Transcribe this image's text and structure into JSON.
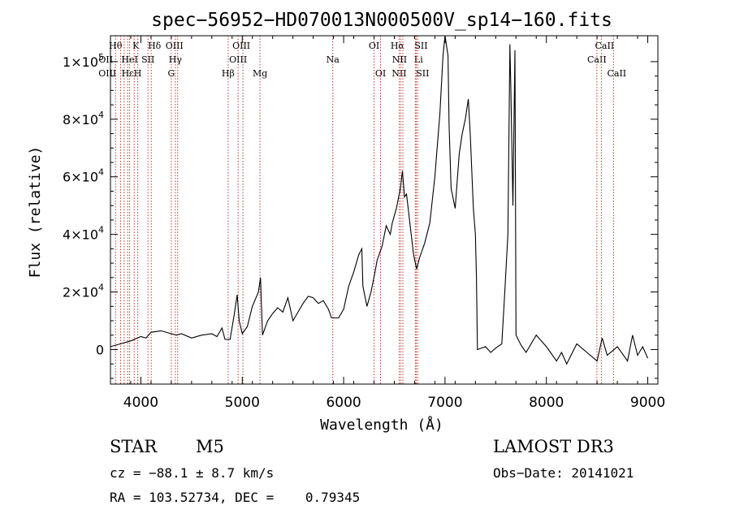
{
  "title": "spec−56952−HD070013N000500V_sp14−160.fits",
  "chart_data": {
    "type": "line",
    "xlabel": "Wavelength (Å)",
    "ylabel": "Flux (relative)",
    "xlim": [
      3700,
      9100
    ],
    "ylim": [
      -12000,
      109000
    ],
    "grid": false,
    "x_ticks": [
      4000,
      5000,
      6000,
      7000,
      8000,
      9000
    ],
    "x_tick_labels": [
      "4000",
      "5000",
      "6000",
      "7000",
      "8000",
      "9000"
    ],
    "y_ticks": [
      0,
      20000,
      40000,
      60000,
      80000,
      100000
    ],
    "y_tick_labels": [
      {
        "mantissa": "0",
        "exp": ""
      },
      {
        "mantissa": "2×10",
        "exp": "4"
      },
      {
        "mantissa": "4×10",
        "exp": "4"
      },
      {
        "mantissa": "6×10",
        "exp": "4"
      },
      {
        "mantissa": "8×10",
        "exp": "4"
      },
      {
        "mantissa": "1×10",
        "exp": "5"
      }
    ],
    "series": [
      {
        "color": "#000000",
        "points": [
          [
            3700,
            1000
          ],
          [
            3800,
            2000
          ],
          [
            3900,
            3000
          ],
          [
            4000,
            4500
          ],
          [
            4050,
            4000
          ],
          [
            4100,
            6000
          ],
          [
            4200,
            6500
          ],
          [
            4300,
            5500
          ],
          [
            4350,
            5000
          ],
          [
            4400,
            5500
          ],
          [
            4500,
            4000
          ],
          [
            4600,
            5000
          ],
          [
            4700,
            5500
          ],
          [
            4750,
            4500
          ],
          [
            4800,
            7500
          ],
          [
            4830,
            3500
          ],
          [
            4880,
            3500
          ],
          [
            4920,
            12000
          ],
          [
            4950,
            19000
          ],
          [
            4970,
            10000
          ],
          [
            5000,
            5500
          ],
          [
            5050,
            8000
          ],
          [
            5100,
            15000
          ],
          [
            5160,
            20000
          ],
          [
            5180,
            25000
          ],
          [
            5200,
            5000
          ],
          [
            5250,
            10000
          ],
          [
            5300,
            12500
          ],
          [
            5350,
            14500
          ],
          [
            5400,
            13000
          ],
          [
            5450,
            18000
          ],
          [
            5500,
            10000
          ],
          [
            5550,
            13000
          ],
          [
            5600,
            16000
          ],
          [
            5650,
            18500
          ],
          [
            5700,
            18000
          ],
          [
            5750,
            16000
          ],
          [
            5800,
            17000
          ],
          [
            5850,
            14000
          ],
          [
            5880,
            11000
          ],
          [
            5950,
            11000
          ],
          [
            6000,
            14000
          ],
          [
            6050,
            22000
          ],
          [
            6100,
            27000
          ],
          [
            6150,
            33000
          ],
          [
            6180,
            35000
          ],
          [
            6190,
            22000
          ],
          [
            6230,
            15000
          ],
          [
            6270,
            20000
          ],
          [
            6310,
            27000
          ],
          [
            6330,
            31000
          ],
          [
            6380,
            36000
          ],
          [
            6420,
            43000
          ],
          [
            6460,
            40000
          ],
          [
            6480,
            44000
          ],
          [
            6520,
            49000
          ],
          [
            6560,
            56000
          ],
          [
            6580,
            62000
          ],
          [
            6600,
            53000
          ],
          [
            6620,
            54000
          ],
          [
            6650,
            45000
          ],
          [
            6690,
            33000
          ],
          [
            6720,
            28000
          ],
          [
            6750,
            32000
          ],
          [
            6800,
            37000
          ],
          [
            6850,
            44000
          ],
          [
            6900,
            60000
          ],
          [
            6950,
            82000
          ],
          [
            6980,
            102000
          ],
          [
            7000,
            109000
          ],
          [
            7030,
            102000
          ],
          [
            7040,
            78000
          ],
          [
            7060,
            56000
          ],
          [
            7100,
            49000
          ],
          [
            7140,
            68000
          ],
          [
            7170,
            75000
          ],
          [
            7200,
            80000
          ],
          [
            7230,
            87000
          ],
          [
            7250,
            74000
          ],
          [
            7280,
            49000
          ],
          [
            7300,
            40000
          ],
          [
            7310,
            25000
          ],
          [
            7320,
            0
          ],
          [
            7400,
            1000
          ],
          [
            7450,
            -1000
          ],
          [
            7500,
            500
          ],
          [
            7560,
            2000
          ],
          [
            7590,
            20000
          ],
          [
            7620,
            40000
          ],
          [
            7640,
            106000
          ],
          [
            7650,
            90000
          ],
          [
            7670,
            50000
          ],
          [
            7690,
            104000
          ],
          [
            7700,
            5000
          ],
          [
            7750,
            1500
          ],
          [
            7800,
            -1000
          ],
          [
            7900,
            5000
          ],
          [
            8000,
            1000
          ],
          [
            8100,
            -4000
          ],
          [
            8150,
            -1000
          ],
          [
            8200,
            -5000
          ],
          [
            8300,
            2000
          ],
          [
            8400,
            -1000
          ],
          [
            8500,
            -4000
          ],
          [
            8550,
            4000
          ],
          [
            8600,
            -2000
          ],
          [
            8700,
            1000
          ],
          [
            8800,
            -4000
          ],
          [
            8850,
            5000
          ],
          [
            8900,
            -2000
          ],
          [
            8950,
            1000
          ],
          [
            9000,
            -3000
          ]
        ]
      }
    ],
    "lines": {
      "color": "#c0392b",
      "items": [
        {
          "x": 3750,
          "labels": [
            {
              "text": "Hθ",
              "row": 0,
              "dx": 0
            },
            {
              "text": "OII",
              "row": 1,
              "dx": -12
            },
            {
              "text": "OIII",
              "row": 2,
              "dx": -10
            }
          ]
        },
        {
          "x": 3800,
          "labels": []
        },
        {
          "x": 3835,
          "labels": []
        },
        {
          "x": 3870,
          "labels": [
            {
              "text": "Hε",
              "row": 2,
              "dx": 0
            }
          ]
        },
        {
          "x": 3889,
          "labels": [
            {
              "text": "HeI",
              "row": 1,
              "dx": 0
            }
          ]
        },
        {
          "x": 3934,
          "labels": [
            {
              "text": "K",
              "row": 0,
              "dx": 2
            }
          ]
        },
        {
          "x": 3969,
          "labels": [
            {
              "text": "H",
              "row": 2,
              "dx": 0
            }
          ]
        },
        {
          "x": 4070,
          "labels": [
            {
              "text": "SII",
              "row": 1,
              "dx": 0
            }
          ]
        },
        {
          "x": 4102,
          "labels": [
            {
              "text": "Hδ",
              "row": 0,
              "dx": 4
            }
          ]
        },
        {
          "x": 4300,
          "labels": [
            {
              "text": "G",
              "row": 2,
              "dx": 0
            }
          ]
        },
        {
          "x": 4340,
          "labels": [
            {
              "text": "Hγ",
              "row": 1,
              "dx": 0
            }
          ]
        },
        {
          "x": 4363,
          "labels": [
            {
              "text": "OIII",
              "row": 0,
              "dx": -4
            }
          ]
        },
        {
          "x": 4861,
          "labels": [
            {
              "text": "Hβ",
              "row": 2,
              "dx": 0
            }
          ]
        },
        {
          "x": 4959,
          "labels": [
            {
              "text": "OIII",
              "row": 1,
              "dx": 0
            }
          ]
        },
        {
          "x": 5007,
          "labels": [
            {
              "text": "OIII",
              "row": 0,
              "dx": -2
            }
          ]
        },
        {
          "x": 5175,
          "labels": [
            {
              "text": "Mg",
              "row": 2,
              "dx": 0
            }
          ]
        },
        {
          "x": 5893,
          "labels": [
            {
              "text": "Na",
              "row": 1,
              "dx": 0
            }
          ]
        },
        {
          "x": 6300,
          "labels": [
            {
              "text": "OI",
              "row": 0,
              "dx": 0
            }
          ]
        },
        {
          "x": 6364,
          "labels": [
            {
              "text": "OI",
              "row": 2,
              "dx": 0
            }
          ]
        },
        {
          "x": 6548,
          "labels": [
            {
              "text": "NII",
              "row": 2,
              "dx": 0
            }
          ]
        },
        {
          "x": 6563,
          "labels": [
            {
              "text": "Hα",
              "row": 0,
              "dx": -4
            }
          ]
        },
        {
          "x": 6584,
          "labels": [
            {
              "text": "NII",
              "row": 1,
              "dx": -4
            }
          ]
        },
        {
          "x": 6707,
          "labels": [
            {
              "text": "Li",
              "row": 1,
              "dx": 4
            }
          ]
        },
        {
          "x": 6716,
          "labels": [
            {
              "text": "SII",
              "row": 0,
              "dx": 6
            }
          ]
        },
        {
          "x": 6731,
          "labels": [
            {
              "text": "SII",
              "row": 2,
              "dx": 6
            }
          ]
        },
        {
          "x": 8498,
          "labels": [
            {
              "text": "CaII",
              "row": 1,
              "dx": 0
            }
          ]
        },
        {
          "x": 8542,
          "labels": [
            {
              "text": "CaII",
              "row": 0,
              "dx": 4
            }
          ]
        },
        {
          "x": 8662,
          "labels": [
            {
              "text": "CaII",
              "row": 2,
              "dx": 4
            }
          ]
        }
      ]
    }
  },
  "info": {
    "object_class": "STAR",
    "subclass": "M5",
    "survey": "LAMOST DR3",
    "cz": "cz = −88.1 ± 8.7 km/s",
    "obs_date": "Obs−Date: 20141021",
    "coords": "RA = 103.52734, DEC =    0.79345"
  }
}
